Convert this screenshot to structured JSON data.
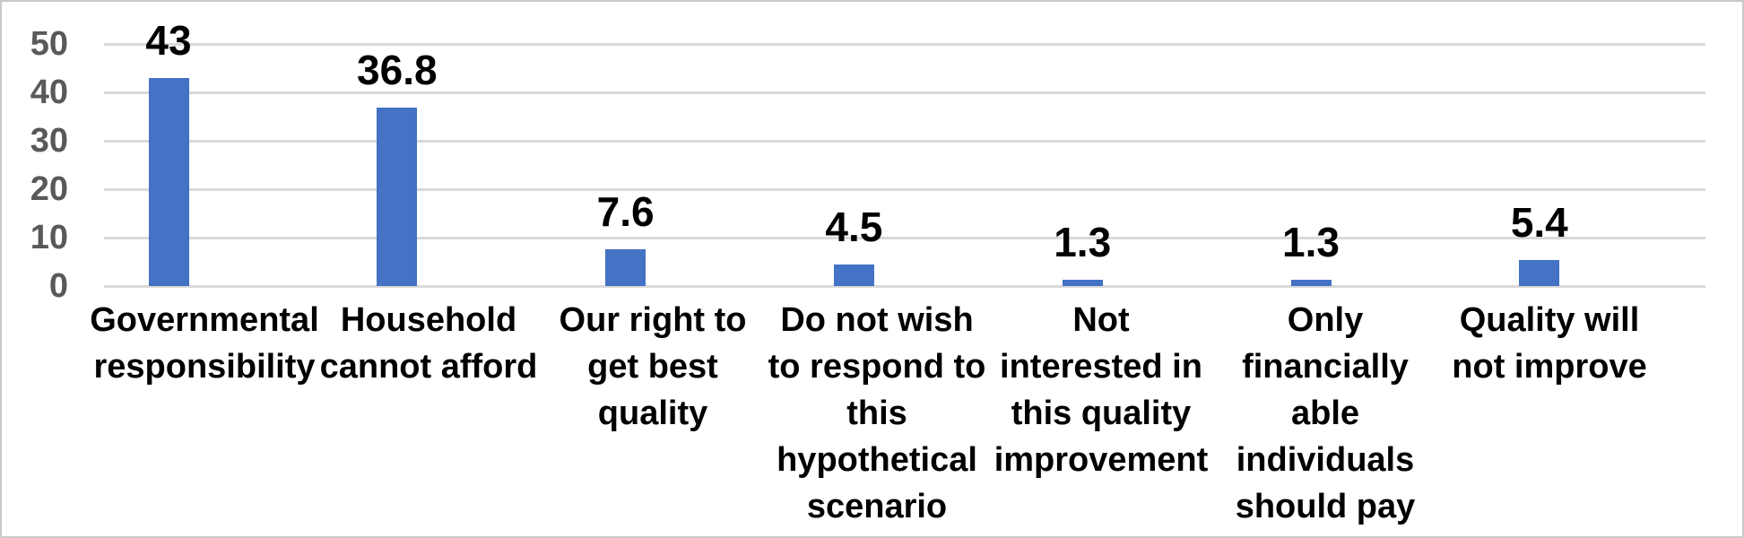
{
  "chart_data": {
    "type": "bar",
    "title": "",
    "xlabel": "",
    "ylabel": "",
    "categories": [
      "Governmental responsibility",
      "Household cannot afford",
      "Our right to get best quality",
      "Do not wish to respond to this hypothetical scenario",
      "Not interested in this quality improvement",
      "Only financially able individuals should pay",
      "Quality will not improve"
    ],
    "category_label_lines": [
      [
        "Governmental",
        "responsibility"
      ],
      [
        "Household",
        "cannot afford"
      ],
      [
        "Our right to",
        "get best",
        "quality"
      ],
      [
        "Do not wish",
        "to respond to",
        "this",
        "hypothetical",
        "scenario"
      ],
      [
        "Not",
        "interested in",
        "this quality",
        "improvement"
      ],
      [
        "Only",
        "financially",
        "able",
        "individuals",
        "should pay"
      ],
      [
        "Quality will",
        "not improve"
      ]
    ],
    "values": [
      43,
      36.8,
      7.6,
      4.5,
      1.3,
      1.3,
      5.4
    ],
    "value_labels": [
      "43",
      "36.8",
      "7.6",
      "4.5",
      "1.3",
      "1.3",
      "5.4"
    ],
    "ylim": [
      0,
      50
    ],
    "yticks": [
      0,
      10,
      20,
      30,
      40,
      50
    ],
    "grid": true,
    "legend": false,
    "colors": {
      "bar": "#4472C4",
      "gridline": "#D9D9D9",
      "tick_label": "#595959",
      "data_label": "#000000",
      "category_label": "#000000",
      "frame_border": "#C9C9C9",
      "background": "#FFFFFF"
    }
  }
}
